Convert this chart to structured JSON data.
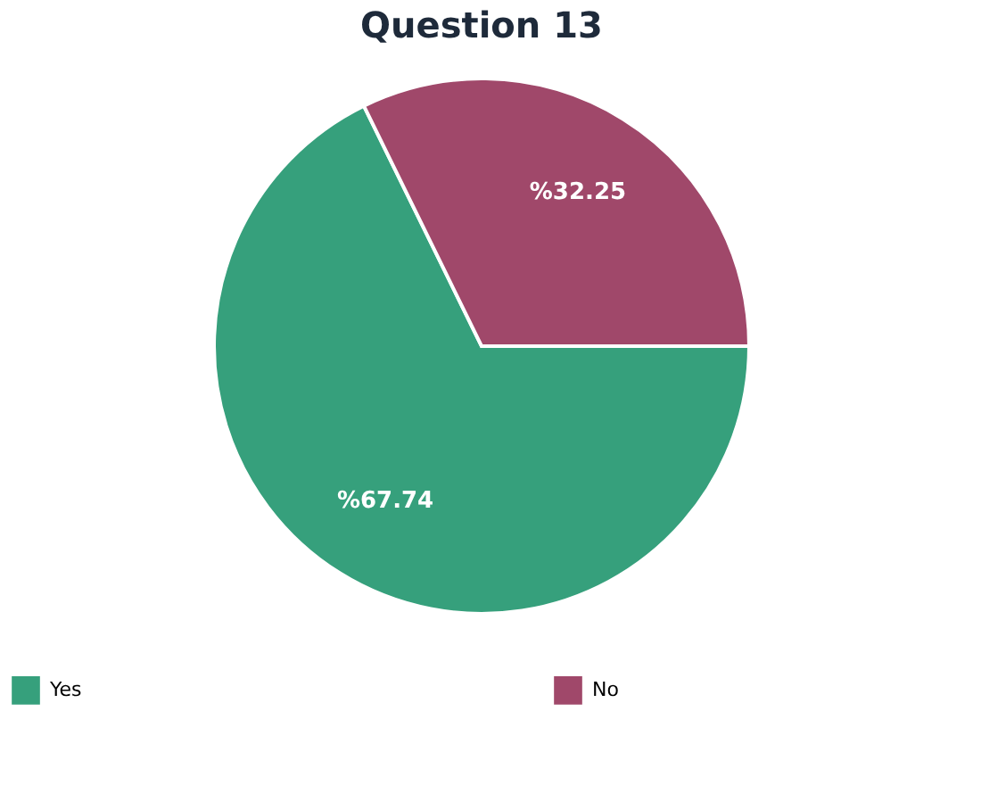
{
  "chart_data": {
    "type": "pie",
    "title": "Question 13",
    "categories": [
      "Yes",
      "No"
    ],
    "values": [
      67.74,
      32.25
    ],
    "colors": [
      "#36a07c",
      "#a0486a"
    ],
    "value_labels": [
      "%67.74",
      "%32.25"
    ],
    "legend": "bottom"
  }
}
